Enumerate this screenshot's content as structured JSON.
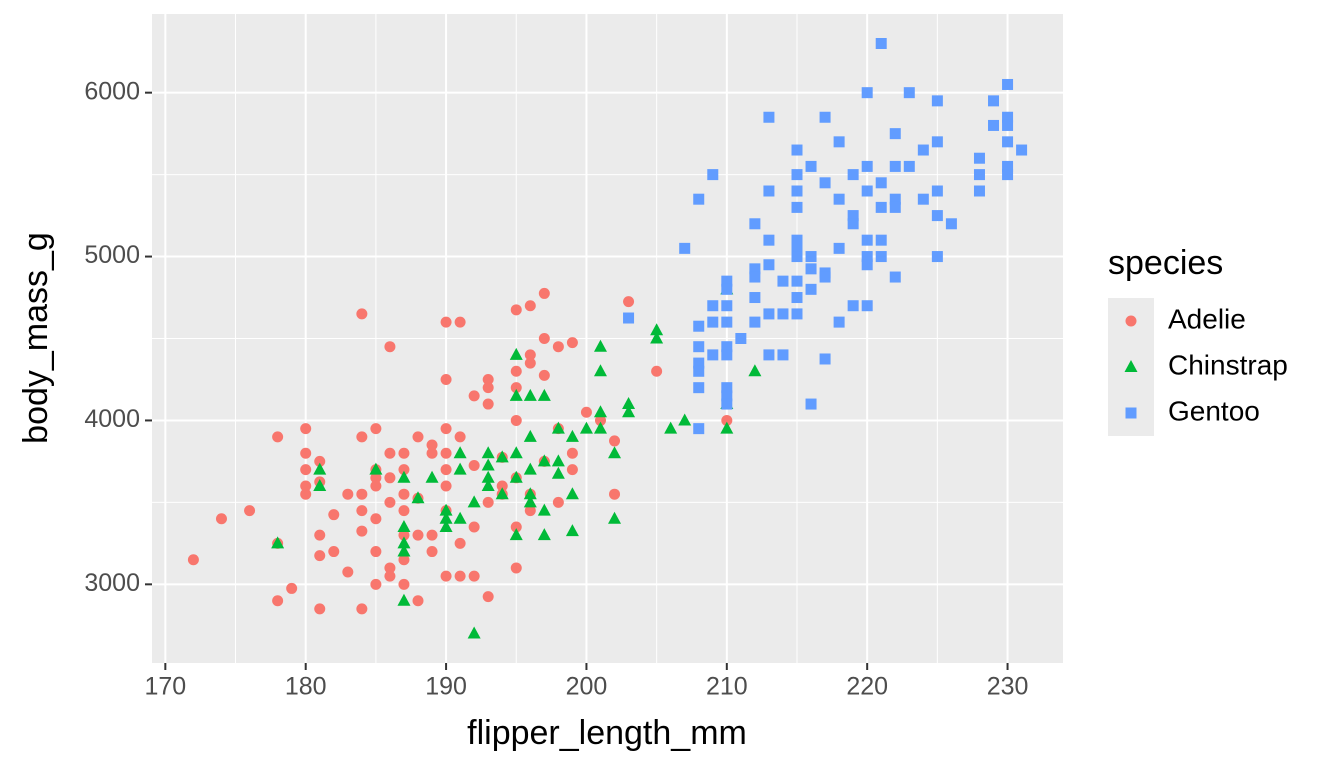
{
  "chart_data": {
    "type": "scatter",
    "xlabel": "flipper_length_mm",
    "ylabel": "body_mass_g",
    "legend_title": "species",
    "xlim": [
      169.05,
      233.95
    ],
    "ylim": [
      2520,
      6480
    ],
    "xticks": [
      170,
      180,
      190,
      200,
      210,
      220,
      230
    ],
    "yticks": [
      3000,
      4000,
      5000,
      6000
    ],
    "grid": true,
    "legend": "right",
    "series": [
      {
        "name": "Adelie",
        "color": "#F8766D",
        "shape": "circle",
        "x": [
          172,
          174,
          176,
          178,
          178,
          178,
          179,
          180,
          180,
          180,
          180,
          180,
          181,
          181,
          181,
          181,
          181,
          182,
          182,
          183,
          183,
          184,
          184,
          184,
          184,
          184,
          184,
          185,
          185,
          185,
          185,
          185,
          185,
          185,
          186,
          186,
          186,
          186,
          186,
          187,
          187,
          187,
          187,
          187,
          187,
          187,
          188,
          188,
          188,
          189,
          189,
          189,
          190,
          190,
          190,
          190,
          190,
          190,
          190,
          190,
          191,
          191,
          191,
          191,
          192,
          192,
          192,
          193,
          193,
          193,
          193,
          193,
          194,
          194,
          195,
          195,
          195,
          195,
          195,
          195,
          196,
          196,
          196,
          196,
          197,
          197,
          197,
          197,
          198,
          198,
          198,
          199,
          199,
          200,
          201,
          202,
          202,
          203,
          205,
          210,
          192,
          188,
          189,
          194,
          195,
          199,
          196,
          186
        ],
        "values": [
          3150,
          3400,
          3450,
          3900,
          2900,
          3250,
          2975,
          3950,
          3800,
          3700,
          3600,
          3550,
          3750,
          3625,
          3300,
          3175,
          2850,
          3425,
          3200,
          3550,
          3075,
          4650,
          3900,
          3550,
          3450,
          3325,
          2850,
          3950,
          3700,
          3650,
          3600,
          3400,
          3200,
          3000,
          4450,
          3800,
          3500,
          3100,
          3050,
          3800,
          3700,
          3550,
          3450,
          3300,
          3150,
          3000,
          3525,
          3300,
          2900,
          3800,
          3300,
          3200,
          4600,
          4250,
          3950,
          3800,
          3700,
          3600,
          3450,
          3050,
          4600,
          3900,
          3250,
          3050,
          4150,
          3725,
          3350,
          4250,
          4200,
          4100,
          3500,
          2925,
          3550,
          3775,
          4675,
          4300,
          4200,
          4000,
          3650,
          3350,
          4700,
          4400,
          4350,
          3550,
          4775,
          4500,
          4275,
          3750,
          4450,
          3950,
          3500,
          4475,
          3800,
          4050,
          4000,
          3875,
          3550,
          4725,
          4300,
          4000,
          3050,
          3900,
          3850,
          3600,
          3100,
          3700,
          3450,
          3650
        ]
      },
      {
        "name": "Chinstrap",
        "color": "#00BA38",
        "shape": "triangle",
        "x": [
          178,
          181,
          181,
          185,
          187,
          187,
          187,
          187,
          187,
          188,
          189,
          190,
          190,
          190,
          191,
          191,
          191,
          192,
          192,
          193,
          193,
          193,
          194,
          194,
          195,
          195,
          195,
          195,
          195,
          196,
          196,
          196,
          196,
          196,
          197,
          197,
          197,
          197,
          198,
          198,
          199,
          199,
          200,
          201,
          201,
          201,
          201,
          202,
          202,
          203,
          203,
          205,
          205,
          206,
          207,
          210,
          210,
          210,
          212,
          198,
          193,
          199
        ],
        "values": [
          3250,
          3700,
          3600,
          3700,
          3650,
          3350,
          3250,
          3200,
          2900,
          3525,
          3650,
          3450,
          3400,
          3350,
          3800,
          3700,
          3400,
          2700,
          3500,
          3800,
          3650,
          3600,
          3775,
          3550,
          4400,
          4150,
          3800,
          3650,
          3300,
          4150,
          3900,
          3700,
          3550,
          3500,
          4150,
          3750,
          3300,
          3450,
          3950,
          3750,
          3900,
          3325,
          3950,
          4450,
          4300,
          4050,
          3950,
          3800,
          3400,
          4100,
          4050,
          4550,
          4500,
          3950,
          4000,
          4800,
          4100,
          3950,
          4300,
          3675,
          3725,
          3550
        ]
      },
      {
        "name": "Gentoo",
        "color": "#619CFF",
        "shape": "square",
        "x": [
          203,
          207,
          208,
          208,
          208,
          208,
          208,
          208,
          208,
          209,
          209,
          209,
          209,
          210,
          210,
          210,
          210,
          210,
          210,
          210,
          210,
          210,
          211,
          212,
          212,
          212,
          212,
          212,
          213,
          213,
          213,
          213,
          213,
          213,
          214,
          214,
          214,
          215,
          215,
          215,
          215,
          215,
          215,
          215,
          215,
          215,
          215,
          216,
          216,
          216,
          216,
          216,
          217,
          217,
          217,
          217,
          217,
          218,
          218,
          218,
          218,
          219,
          219,
          219,
          219,
          220,
          220,
          220,
          220,
          220,
          220,
          220,
          221,
          221,
          221,
          221,
          221,
          222,
          222,
          222,
          222,
          222,
          223,
          223,
          224,
          224,
          225,
          225,
          225,
          225,
          225,
          226,
          228,
          228,
          228,
          229,
          229,
          230,
          230,
          230,
          230,
          230,
          230,
          231
        ],
        "values": [
          4625,
          5050,
          5350,
          4575,
          4450,
          4350,
          4300,
          4200,
          3950,
          5500,
          4700,
          4600,
          4400,
          4850,
          4800,
          4700,
          4600,
          4450,
          4400,
          4200,
          4150,
          4100,
          4500,
          5200,
          4925,
          4875,
          4750,
          4600,
          5850,
          5400,
          5100,
          4950,
          4650,
          4400,
          4850,
          4650,
          4400,
          5650,
          5500,
          5400,
          5300,
          5100,
          5050,
          5000,
          4850,
          4750,
          4650,
          5550,
          5000,
          4925,
          4800,
          4100,
          5850,
          5450,
          4900,
          4875,
          4375,
          5700,
          5350,
          5050,
          4600,
          5500,
          5250,
          5200,
          4700,
          6000,
          5550,
          5400,
          5100,
          5000,
          4950,
          4700,
          6300,
          5450,
          5300,
          5100,
          5000,
          5750,
          5550,
          5350,
          5300,
          4875,
          6000,
          5550,
          5650,
          5350,
          5950,
          5700,
          5400,
          5250,
          5000,
          5200,
          5600,
          5500,
          5400,
          5950,
          5800,
          6050,
          5850,
          5800,
          5700,
          5550,
          5500,
          5650
        ]
      }
    ]
  }
}
